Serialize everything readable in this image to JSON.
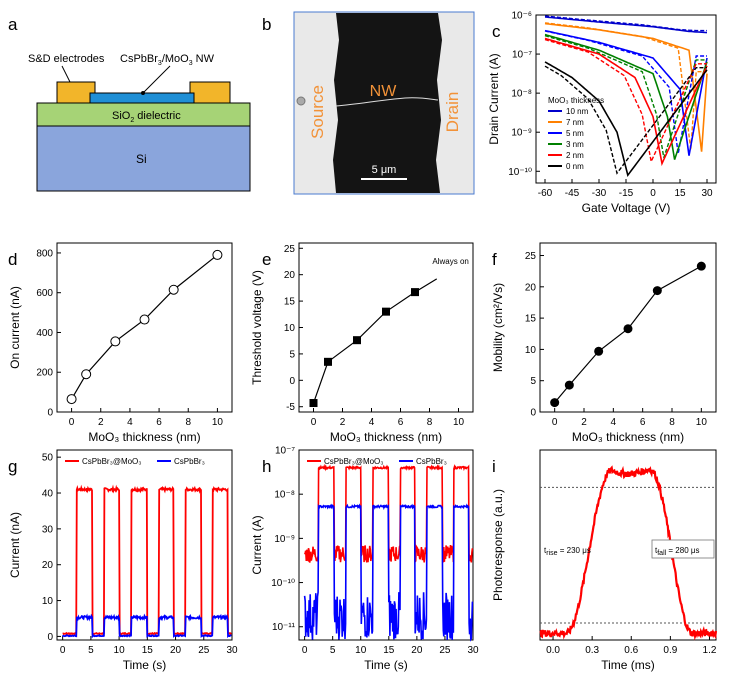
{
  "panels": {
    "a": {
      "label": "a",
      "electrodes_label": "S&D electrodes",
      "nw_label": "CsPbBr",
      "nw_sub": "3",
      "nw_rest": "/MoO",
      "nw_sub2": "3",
      "nw_end": " NW",
      "dielectric": "SiO",
      "dielectric_sub": "2",
      "dielectric_end": " dielectric",
      "substrate": "Si",
      "colors": {
        "electrode": "#f2b52a",
        "nw": "#1f8fd6",
        "dielectric": "#a6d376",
        "substrate": "#8aa5dc"
      }
    },
    "b": {
      "label": "b",
      "source": "Source",
      "drain": "Drain",
      "nw": "NW",
      "scale": "5 μm"
    }
  },
  "chart_data": [
    {
      "id": "c",
      "type": "line",
      "label": "c",
      "xlabel": "Gate Voltage (V)",
      "ylabel": "Drain Current (A)",
      "xlim": [
        -65,
        35
      ],
      "xticks": [
        -60,
        -45,
        -30,
        -15,
        0,
        15,
        30
      ],
      "yscale": "log",
      "ylim_exp": [
        -10.3,
        -6
      ],
      "yticks": [
        "10⁻¹⁰",
        "10⁻⁹",
        "10⁻⁸",
        "10⁻⁷",
        "10⁻⁶"
      ],
      "legend_title": "MoO₃ thickness",
      "series": [
        {
          "name": "10 nm",
          "color": "#0000cc",
          "min_v": 32,
          "curve": [
            [
              -60,
              -6.05
            ],
            [
              -30,
              -6.18
            ],
            [
              0,
              -6.3
            ],
            [
              20,
              -6.42
            ],
            [
              30,
              -6.45
            ]
          ]
        },
        {
          "name": "7 nm",
          "color": "#ff8000",
          "min_v": 27,
          "curve": [
            [
              -60,
              -6.22
            ],
            [
              -30,
              -6.38
            ],
            [
              0,
              -6.6
            ],
            [
              20,
              -6.9
            ],
            [
              27,
              -9.5
            ],
            [
              30,
              -7.5
            ]
          ]
        },
        {
          "name": "5 nm",
          "color": "#0000ff",
          "min_v": 20,
          "curve": [
            [
              -60,
              -6.4
            ],
            [
              -30,
              -6.7
            ],
            [
              0,
              -7.1
            ],
            [
              15,
              -7.9
            ],
            [
              20,
              -9.6
            ],
            [
              30,
              -7.1
            ]
          ]
        },
        {
          "name": "3 nm",
          "color": "#008000",
          "min_v": 12,
          "curve": [
            [
              -60,
              -6.5
            ],
            [
              -30,
              -6.9
            ],
            [
              0,
              -7.5
            ],
            [
              8,
              -8.6
            ],
            [
              12,
              -9.7
            ],
            [
              30,
              -7.2
            ]
          ]
        },
        {
          "name": "2 nm",
          "color": "#ff0000",
          "min_v": 5,
          "curve": [
            [
              -60,
              -6.6
            ],
            [
              -30,
              -7.0
            ],
            [
              -10,
              -7.6
            ],
            [
              0,
              -8.6
            ],
            [
              5,
              -9.8
            ],
            [
              30,
              -7.3
            ]
          ]
        },
        {
          "name": "0 nm",
          "color": "#000000",
          "min_v": -14,
          "curve": [
            [
              -60,
              -7.2
            ],
            [
              -45,
              -7.6
            ],
            [
              -30,
              -8.2
            ],
            [
              -20,
              -9.0
            ],
            [
              -14,
              -10.1
            ],
            [
              30,
              -7.4
            ]
          ]
        }
      ]
    },
    {
      "id": "d",
      "type": "line",
      "label": "d",
      "xlabel": "MoO₃ thickness (nm)",
      "ylabel": "On current (nA)",
      "xlim": [
        -1,
        11
      ],
      "ylim": [
        0,
        850
      ],
      "xticks": [
        0,
        2,
        4,
        6,
        8,
        10
      ],
      "yticks": [
        0,
        200,
        400,
        600,
        800
      ],
      "x": [
        0,
        1,
        3,
        5,
        7,
        10
      ],
      "y": [
        65,
        190,
        355,
        465,
        615,
        790
      ],
      "marker": "open-circle"
    },
    {
      "id": "e",
      "type": "line",
      "label": "e",
      "xlabel": "MoO₃ thickness (nm)",
      "ylabel": "Threshold voltage (V)",
      "xlim": [
        -1,
        11
      ],
      "ylim": [
        -6,
        26
      ],
      "xticks": [
        0,
        2,
        4,
        6,
        8,
        10
      ],
      "yticks": [
        -5,
        0,
        5,
        10,
        15,
        20,
        25
      ],
      "x": [
        0,
        1,
        3,
        5,
        7
      ],
      "y": [
        -4.3,
        3.5,
        7.6,
        13.0,
        16.7
      ],
      "annotation": "Always on",
      "marker": "filled-square"
    },
    {
      "id": "f",
      "type": "line",
      "label": "f",
      "xlabel": "MoO₃ thickness (nm)",
      "ylabel": "Mobility (cm²/Vs)",
      "xlim": [
        -1,
        11
      ],
      "ylim": [
        0,
        27
      ],
      "xticks": [
        0,
        2,
        4,
        6,
        8,
        10
      ],
      "yticks": [
        0,
        5,
        10,
        15,
        20,
        25
      ],
      "x": [
        0,
        1,
        3,
        5,
        7,
        10
      ],
      "y": [
        1.5,
        4.3,
        9.7,
        13.3,
        19.4,
        23.3
      ],
      "marker": "filled-circle"
    },
    {
      "id": "g",
      "type": "line",
      "label": "g",
      "xlabel": "Time (s)",
      "ylabel": "Current (nA)",
      "xlim": [
        -1,
        30
      ],
      "ylim": [
        -1,
        52
      ],
      "xticks": [
        0,
        5,
        10,
        15,
        20,
        25,
        30
      ],
      "yticks": [
        0,
        10,
        20,
        30,
        40,
        50
      ],
      "legend": [
        "CsPbBr₃@MoO₃",
        "CsPbBr₃"
      ],
      "series": [
        {
          "name": "CsPbBr3@MoO3",
          "color": "#ff0000",
          "on": 41,
          "off": 0.8
        },
        {
          "name": "CsPbBr3",
          "color": "#0000ff",
          "on": 5.3,
          "off": 0.2
        }
      ],
      "pulses": [
        [
          2.5,
          5.2
        ],
        [
          7.3,
          10.0
        ],
        [
          12.1,
          14.9
        ],
        [
          17.0,
          19.7
        ],
        [
          21.8,
          24.6
        ],
        [
          26.6,
          29.3
        ]
      ]
    },
    {
      "id": "h",
      "type": "line",
      "label": "h",
      "xlabel": "Time (s)",
      "ylabel": "Current (A)",
      "xlim": [
        -1,
        30
      ],
      "yscale": "log",
      "ylim_exp": [
        -11.3,
        -7
      ],
      "xticks": [
        0,
        5,
        10,
        15,
        20,
        25,
        30
      ],
      "yticks": [
        "10⁻¹¹",
        "10⁻¹⁰",
        "10⁻⁹",
        "10⁻⁸",
        "10⁻⁷"
      ],
      "legend": [
        "CsPbBr₃@MoO₃",
        "CsPbBr₃"
      ],
      "series": [
        {
          "name": "CsPbBr3@MoO3",
          "color": "#ff0000",
          "on_exp": -7.4,
          "off_exp": -9.35
        },
        {
          "name": "CsPbBr3",
          "color": "#0000ff",
          "on_exp": -8.28,
          "off_exp": -10.75
        }
      ],
      "pulses": [
        [
          2.5,
          5.2
        ],
        [
          7.3,
          10.0
        ],
        [
          12.1,
          14.9
        ],
        [
          17.0,
          19.7
        ],
        [
          21.8,
          24.6
        ],
        [
          26.6,
          29.3
        ]
      ]
    },
    {
      "id": "i",
      "type": "line",
      "label": "i",
      "xlabel": "Time (ms)",
      "ylabel": "Photoresponse (a.u.)",
      "xlim": [
        -0.1,
        1.25
      ],
      "ylim": [
        0,
        1.12
      ],
      "xticks": [
        0.0,
        0.3,
        0.6,
        0.9,
        1.2
      ],
      "xtick_labels": [
        "0.0",
        "0.3",
        "0.6",
        "0.9",
        "1.2"
      ],
      "rise_label": "t",
      "rise_sub": "rise",
      "rise_value": " = 230 μs",
      "fall_label": "t",
      "fall_sub": "fall",
      "fall_value": " = 280 μs",
      "levels": [
        0.1,
        0.9
      ],
      "color": "#ff0000"
    }
  ]
}
